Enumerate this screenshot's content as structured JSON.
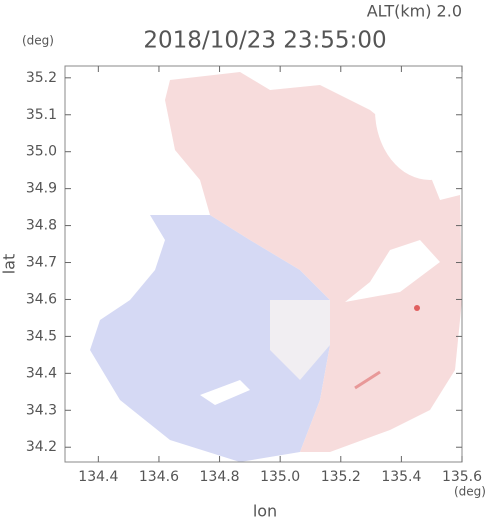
{
  "chart_data": {
    "type": "map",
    "title": "2018/10/23 23:55:00",
    "altitude": "ALT(km) 2.0",
    "x_label": "lon",
    "y_label": "lat",
    "x_unit": "(deg)",
    "y_unit": "(deg)",
    "xlim": [
      134.29,
      135.6
    ],
    "ylim": [
      34.16,
      35.232
    ],
    "xticks": [
      134.4,
      134.6,
      134.8,
      {
        "value": 135,
        "label": "135.0"
      },
      135.2,
      135.4,
      135.6
    ],
    "yticks": [
      34.2,
      34.3,
      34.4,
      34.5,
      34.6,
      34.7,
      34.8,
      34.9,
      {
        "value": 35,
        "label": "35.0"
      },
      35.1,
      35.2
    ]
  }
}
